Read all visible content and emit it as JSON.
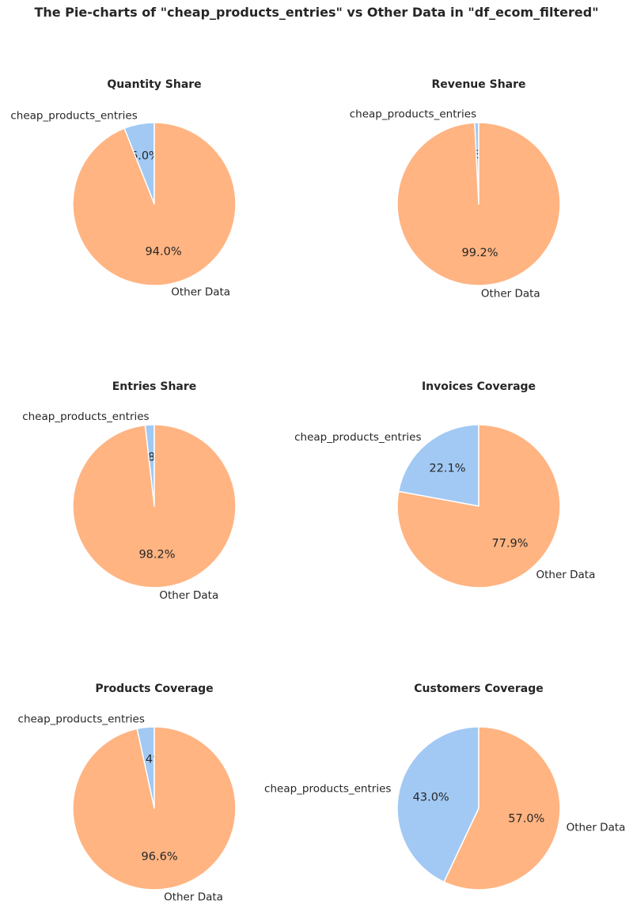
{
  "figure": {
    "title": "The Pie-charts of \"cheap_products_entries\" vs Other Data in \"df_ecom_filtered\""
  },
  "colors": {
    "cheap": "#a1c9f4",
    "other": "#ffb482",
    "edge": "#ffffff"
  },
  "chart_data": [
    {
      "type": "pie",
      "title": "Quantity Share",
      "labels": [
        "cheap_products_entries",
        "Other Data"
      ],
      "values": [
        6.0,
        94.0
      ],
      "autopct": [
        "6.0%",
        "94.0%"
      ]
    },
    {
      "type": "pie",
      "title": "Revenue Share",
      "labels": [
        "cheap_products_entries",
        "Other Data"
      ],
      "values": [
        0.8,
        99.2
      ],
      "autopct": [
        "0.8%",
        "99.2%"
      ]
    },
    {
      "type": "pie",
      "title": "Entries Share",
      "labels": [
        "cheap_products_entries",
        "Other Data"
      ],
      "values": [
        1.8,
        98.2
      ],
      "autopct": [
        "1.8%",
        "98.2%"
      ]
    },
    {
      "type": "pie",
      "title": "Invoices Coverage",
      "labels": [
        "cheap_products_entries",
        "Other Data"
      ],
      "values": [
        22.1,
        77.9
      ],
      "autopct": [
        "22.1%",
        "77.9%"
      ]
    },
    {
      "type": "pie",
      "title": "Products Coverage",
      "labels": [
        "cheap_products_entries",
        "Other Data"
      ],
      "values": [
        3.4,
        96.6
      ],
      "autopct": [
        "3.4%",
        "96.6%"
      ]
    },
    {
      "type": "pie",
      "title": "Customers Coverage",
      "labels": [
        "cheap_products_entries",
        "Other Data"
      ],
      "values": [
        43.0,
        57.0
      ],
      "autopct": [
        "43.0%",
        "57.0%"
      ]
    }
  ]
}
